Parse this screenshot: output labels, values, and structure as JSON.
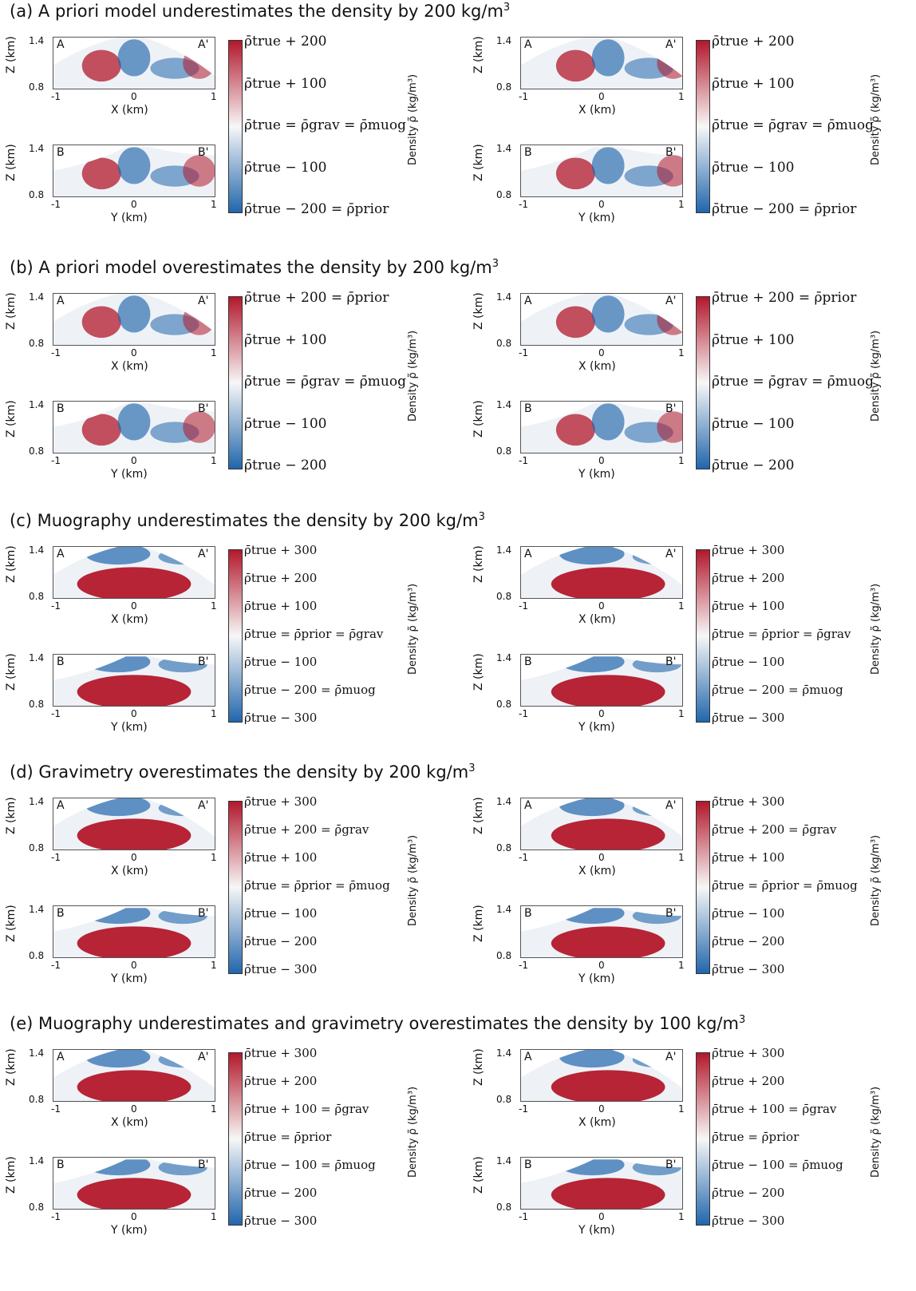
{
  "rows": [
    {
      "title_prefix": "(a) A priori model underestimates the density by 200 kg/m",
      "title_sup": "3",
      "colorbar_labels": [
        "ρ̄true + 200",
        "ρ̄true + 100",
        "ρ̄true = ρ̄grav = ρ̄muog",
        "ρ̄true − 100",
        "ρ̄true − 200 = ρ̄prior"
      ]
    },
    {
      "title_prefix": "(b) A priori model overestimates the density by 200 kg/m",
      "title_sup": "3",
      "colorbar_labels": [
        "ρ̄true + 200 = ρ̄prior",
        "ρ̄true + 100",
        "ρ̄true = ρ̄grav = ρ̄muog",
        "ρ̄true − 100",
        "ρ̄true − 200"
      ]
    },
    {
      "title_prefix": "(c) Muography underestimates the density by 200 kg/m",
      "title_sup": "3",
      "colorbar_labels": [
        "ρ̄true + 300",
        "ρ̄true + 200",
        "ρ̄true + 100",
        "ρ̄true = ρ̄prior = ρ̄grav",
        "ρ̄true − 100",
        "ρ̄true − 200 = ρ̄muog",
        "ρ̄true − 300"
      ]
    },
    {
      "title_prefix": "(d) Gravimetry overestimates the density by 200 kg/m",
      "title_sup": "3",
      "colorbar_labels": [
        "ρ̄true + 300",
        "ρ̄true + 200 = ρ̄grav",
        "ρ̄true + 100",
        "ρ̄true = ρ̄prior = ρ̄muog",
        "ρ̄true − 100",
        "ρ̄true − 200",
        "ρ̄true − 300"
      ]
    },
    {
      "title_prefix": "(e) Muography underestimates and gravimetry overestimates the density by 100 kg/m",
      "title_sup": "3",
      "colorbar_labels": [
        "ρ̄true + 300",
        "ρ̄true + 200",
        "ρ̄true + 100 = ρ̄grav",
        "ρ̄true = ρ̄prior",
        "ρ̄true − 100 = ρ̄muog",
        "ρ̄true − 200",
        "ρ̄true − 300"
      ]
    }
  ],
  "panel_text": {
    "z_label": "Z (km)",
    "x_label": "X (km)",
    "y_label": "Y (km)",
    "z_ticks": [
      "1.4",
      "0.8"
    ],
    "h_ticks": [
      "-1",
      "0",
      "1"
    ],
    "section_top_left": "A",
    "section_top_right": "A'",
    "section_bottom_left": "B",
    "section_bottom_right": "B'"
  },
  "density_label": "Density ρ̃ (kg/m³)",
  "colors": {
    "high": "#b2182b",
    "mid": "#f7f7f7",
    "low": "#2166ac"
  }
}
